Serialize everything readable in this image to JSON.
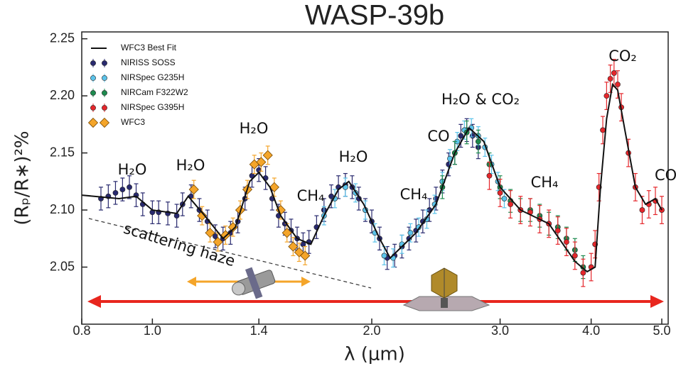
{
  "chart_data": {
    "type": "scatter",
    "title": "WASP-39b",
    "x_label": "λ (μm)",
    "y_label": "(Rₚ/R∗)²%",
    "xscale": "log",
    "xlim": [
      0.8,
      5.0
    ],
    "xticks": [
      0.8,
      {
        "value": 1.0,
        "label": "1.0"
      },
      1.4,
      {
        "value": 2.0,
        "label": "2.0"
      },
      {
        "value": 3.0,
        "label": "3.0"
      },
      {
        "value": 4.0,
        "label": "4.0"
      },
      {
        "value": 5.0,
        "label": "5.0"
      }
    ],
    "ylim": [
      2.0,
      2.256
    ],
    "yticks": [
      {
        "value": 2.05,
        "label": "2.05"
      },
      {
        "value": 2.1,
        "label": "2.10"
      },
      2.15,
      {
        "value": 2.2,
        "label": "2.20"
      },
      2.25
    ],
    "best_fit": {
      "name": "WFC3 Best Fit",
      "color": "#111111",
      "x": [
        0.8,
        0.9,
        0.95,
        1.0,
        1.08,
        1.12,
        1.18,
        1.25,
        1.3,
        1.36,
        1.4,
        1.45,
        1.5,
        1.58,
        1.65,
        1.72,
        1.8,
        1.86,
        1.95,
        2.05,
        2.12,
        2.2,
        2.3,
        2.45,
        2.6,
        2.72,
        2.85,
        3.0,
        3.2,
        3.5,
        3.8,
        3.95,
        4.05,
        4.12,
        4.2,
        4.28,
        4.35,
        4.45,
        4.6,
        4.75,
        4.9,
        5.0
      ],
      "values": [
        2.113,
        2.11,
        2.112,
        2.1,
        2.097,
        2.112,
        2.095,
        2.075,
        2.085,
        2.125,
        2.133,
        2.12,
        2.095,
        2.075,
        2.07,
        2.095,
        2.118,
        2.125,
        2.105,
        2.075,
        2.058,
        2.068,
        2.08,
        2.105,
        2.15,
        2.172,
        2.16,
        2.12,
        2.1,
        2.088,
        2.055,
        2.046,
        2.05,
        2.12,
        2.18,
        2.21,
        2.205,
        2.17,
        2.12,
        2.105,
        2.11,
        2.1
      ]
    },
    "series": [
      {
        "name": "NIRISS SOSS",
        "color": "#28296e",
        "marker": "circle",
        "error": 0.01,
        "x": [
          0.85,
          0.87,
          0.89,
          0.91,
          0.93,
          0.95,
          0.97,
          1.0,
          1.02,
          1.05,
          1.08,
          1.1,
          1.13,
          1.16,
          1.19,
          1.22,
          1.25,
          1.28,
          1.31,
          1.34,
          1.37,
          1.4,
          1.43,
          1.46,
          1.49,
          1.52,
          1.55,
          1.58,
          1.61,
          1.64,
          1.68,
          1.72,
          1.76,
          1.8,
          1.84,
          1.88,
          1.92,
          1.96,
          2.0,
          2.05,
          2.1,
          2.15,
          2.2,
          2.25,
          2.3,
          2.35,
          2.4,
          2.45,
          2.5,
          2.55,
          2.6,
          2.65,
          2.7,
          2.75,
          2.8
        ],
        "values": [
          2.11,
          2.112,
          2.115,
          2.118,
          2.12,
          2.113,
          2.105,
          2.098,
          2.098,
          2.097,
          2.095,
          2.105,
          2.112,
          2.1,
          2.09,
          2.077,
          2.075,
          2.08,
          2.09,
          2.11,
          2.13,
          2.135,
          2.128,
          2.11,
          2.095,
          2.088,
          2.082,
          2.075,
          2.07,
          2.072,
          2.085,
          2.1,
          2.112,
          2.12,
          2.122,
          2.12,
          2.11,
          2.1,
          2.09,
          2.075,
          2.058,
          2.06,
          2.068,
          2.075,
          2.082,
          2.09,
          2.1,
          2.11,
          2.125,
          2.14,
          2.15,
          2.165,
          2.17,
          2.165,
          2.155
        ]
      },
      {
        "name": "NIRSpec G235H",
        "color": "#5bc3ea",
        "marker": "circle",
        "error": 0.008,
        "x": [
          1.72,
          1.78,
          1.84,
          1.9,
          1.96,
          2.02,
          2.08,
          2.14,
          2.2,
          2.26,
          2.32,
          2.38,
          2.44,
          2.5,
          2.56,
          2.62,
          2.68,
          2.74,
          2.8,
          2.86,
          2.92,
          2.98,
          3.04
        ],
        "values": [
          2.095,
          2.11,
          2.12,
          2.115,
          2.1,
          2.08,
          2.06,
          2.058,
          2.07,
          2.08,
          2.085,
          2.092,
          2.105,
          2.125,
          2.145,
          2.16,
          2.17,
          2.172,
          2.165,
          2.155,
          2.14,
          2.125,
          2.11
        ]
      },
      {
        "name": "NIRCam F322W2",
        "color": "#1d8a4e",
        "marker": "circle",
        "error": 0.01,
        "x": [
          2.5,
          2.6,
          2.7,
          2.8,
          2.9,
          3.0,
          3.1,
          3.2,
          3.3,
          3.4,
          3.5,
          3.6,
          3.7,
          3.8,
          3.9
        ],
        "values": [
          2.12,
          2.15,
          2.168,
          2.16,
          2.14,
          2.12,
          2.108,
          2.1,
          2.1,
          2.095,
          2.088,
          2.085,
          2.075,
          2.065,
          2.05
        ]
      },
      {
        "name": "NIRSpec G395H",
        "color": "#e5262b",
        "marker": "circle",
        "error": 0.012,
        "x": [
          2.9,
          3.0,
          3.1,
          3.2,
          3.3,
          3.4,
          3.5,
          3.6,
          3.7,
          3.8,
          3.9,
          4.0,
          4.05,
          4.1,
          4.15,
          4.2,
          4.25,
          4.3,
          4.35,
          4.4,
          4.5,
          4.6,
          4.7,
          4.8,
          4.9,
          5.0
        ],
        "values": [
          2.13,
          2.115,
          2.105,
          2.1,
          2.098,
          2.092,
          2.088,
          2.082,
          2.072,
          2.06,
          2.045,
          2.05,
          2.07,
          2.12,
          2.17,
          2.2,
          2.215,
          2.22,
          2.21,
          2.19,
          2.15,
          2.12,
          2.1,
          2.105,
          2.108,
          2.1
        ]
      },
      {
        "name": "WFC3",
        "color": "#f4a52a",
        "marker": "diamond",
        "error": 0.008,
        "x": [
          1.14,
          1.17,
          1.2,
          1.23,
          1.26,
          1.29,
          1.32,
          1.35,
          1.38,
          1.41,
          1.44,
          1.47,
          1.5,
          1.53,
          1.56,
          1.59,
          1.62
        ],
        "values": [
          2.118,
          2.095,
          2.08,
          2.072,
          2.078,
          2.085,
          2.1,
          2.118,
          2.14,
          2.142,
          2.148,
          2.12,
          2.1,
          2.08,
          2.068,
          2.063,
          2.06
        ]
      }
    ],
    "annotations": [
      "H₂O",
      "H₂O",
      "H₂O",
      "H₂O",
      "CH₄",
      "CH₄",
      "CO",
      "H₂O & CO₂",
      "CH₄",
      "CO₂",
      "CO",
      "scattering haze"
    ]
  }
}
